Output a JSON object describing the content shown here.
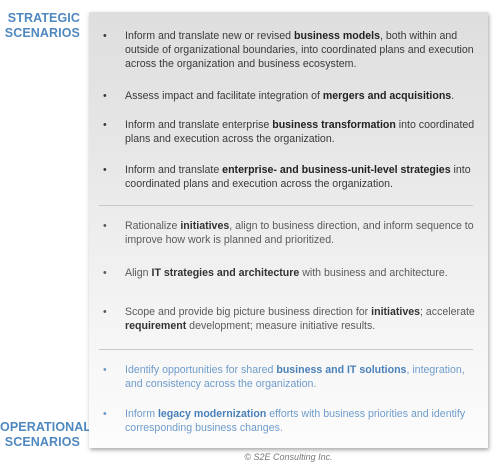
{
  "labels": {
    "top_line1": "STRATEGIC",
    "top_line2": "SCENARIOS",
    "bottom_line1": "OPERATIONAL",
    "bottom_line2": "SCENARIOS"
  },
  "bullet_char": "•",
  "items": [
    {
      "pre": "Inform and translate new or revised ",
      "bold": "business models",
      "post": ", both within and outside of organizational boundaries, into coordinated plans and execution across the organization and business ecosystem.",
      "pre2": "",
      "bold2": "",
      "post2": ""
    },
    {
      "pre": "Assess impact and facilitate integration of ",
      "bold": "mergers and acquisitions",
      "post": ".",
      "pre2": "",
      "bold2": "",
      "post2": ""
    },
    {
      "pre": "Inform and translate enterprise ",
      "bold": "business transformation",
      "post": " into coordinated plans and execution across the organization.",
      "pre2": "",
      "bold2": "",
      "post2": ""
    },
    {
      "pre": "Inform and translate ",
      "bold": "enterprise- and business-unit-level strategies",
      "post": " into coordinated plans and execution across the organization.",
      "pre2": "",
      "bold2": "",
      "post2": ""
    },
    {
      "pre": "Rationalize ",
      "bold": "initiatives",
      "post": ", align to business direction, and inform sequence to improve how work is planned and prioritized.",
      "pre2": "",
      "bold2": "",
      "post2": ""
    },
    {
      "pre": "Align ",
      "bold": "IT strategies and architecture",
      "post": " with business and architecture.",
      "pre2": "",
      "bold2": "",
      "post2": ""
    },
    {
      "pre": "Scope and provide big picture business direction for ",
      "bold": "initiatives",
      "post": "; accelerate ",
      "pre2": "",
      "bold2": "requirement",
      "post2": " development; measure initiative results."
    },
    {
      "pre": "Identify opportunities for shared ",
      "bold": "business and IT solutions",
      "post": ", integration, and consistency across the organization.",
      "pre2": "",
      "bold2": "",
      "post2": ""
    },
    {
      "pre": "Inform ",
      "bold": "legacy modernization",
      "post": " efforts with business priorities and identify corresponding business changes.",
      "pre2": "",
      "bold2": "",
      "post2": ""
    }
  ],
  "copyright": "© S2E Consulting Inc."
}
